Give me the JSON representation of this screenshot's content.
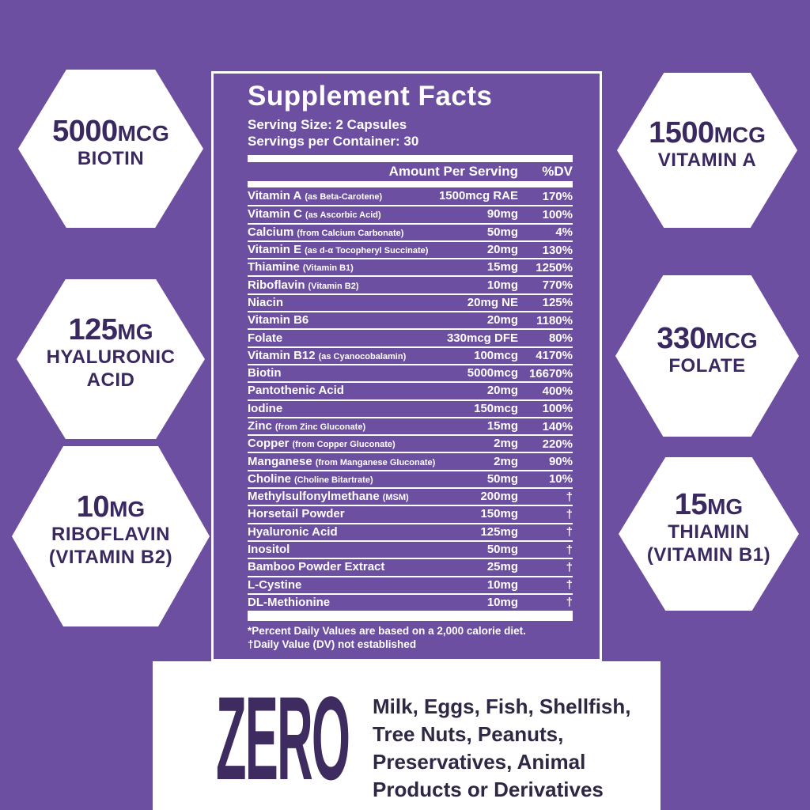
{
  "colors": {
    "background": "#6D4FA2",
    "panel_border": "#FFFFFF",
    "panel_text": "#FFFFFF",
    "dark_purple_text": "#3A2960",
    "hexagon_fill": "#FFFFFF",
    "zero_headline_color": "#3E2B5F",
    "allergen_text_color": "#2F2743"
  },
  "hexagons": {
    "left": [
      {
        "value": "5000",
        "unit": "MCG",
        "lines": [
          "BIOTIN"
        ]
      },
      {
        "value": "125",
        "unit": "MG",
        "lines": [
          "HYALURONIC",
          "ACID"
        ]
      },
      {
        "value": "10",
        "unit": "MG",
        "lines": [
          "RIBOFLAVIN",
          "(VITAMIN B2)"
        ]
      }
    ],
    "right": [
      {
        "value": "1500",
        "unit": "MCG",
        "lines": [
          "VITAMIN A"
        ]
      },
      {
        "value": "330",
        "unit": "MCG",
        "lines": [
          "FOLATE"
        ]
      },
      {
        "value": "15",
        "unit": "MG",
        "lines": [
          "THIAMIN",
          "(VITAMIN B1)"
        ]
      }
    ]
  },
  "supplement_panel": {
    "title": "Supplement Facts",
    "serving_size": "Serving Size: 2 Capsules",
    "servings_per_container": "Servings per Container: 30",
    "column_headers": {
      "amount": "Amount Per Serving",
      "dv": "%DV"
    },
    "rows": [
      {
        "name": "Vitamin A",
        "detail": "(as Beta-Carotene)",
        "amount": "1500mcg RAE",
        "dv": "170%"
      },
      {
        "name": "Vitamin C",
        "detail": "(as Ascorbic Acid)",
        "amount": "90mg",
        "dv": "100%"
      },
      {
        "name": "Calcium",
        "detail": "(from Calcium Carbonate)",
        "amount": "50mg",
        "dv": "4%"
      },
      {
        "name": "Vitamin E",
        "detail": "(as d-α Tocopheryl Succinate)",
        "amount": "20mg",
        "dv": "130%"
      },
      {
        "name": "Thiamine",
        "detail": "(Vitamin B1)",
        "amount": "15mg",
        "dv": "1250%"
      },
      {
        "name": "Riboflavin",
        "detail": "(Vitamin B2)",
        "amount": "10mg",
        "dv": "770%"
      },
      {
        "name": "Niacin",
        "detail": "",
        "amount": "20mg NE",
        "dv": "125%"
      },
      {
        "name": "Vitamin B6",
        "detail": "",
        "amount": "20mg",
        "dv": "1180%"
      },
      {
        "name": "Folate",
        "detail": "",
        "amount": "330mcg DFE",
        "dv": "80%"
      },
      {
        "name": "Vitamin B12",
        "detail": "(as Cyanocobalamin)",
        "amount": "100mcg",
        "dv": "4170%"
      },
      {
        "name": "Biotin",
        "detail": "",
        "amount": "5000mcg",
        "dv": "16670%"
      },
      {
        "name": "Pantothenic Acid",
        "detail": "",
        "amount": "20mg",
        "dv": "400%"
      },
      {
        "name": "Iodine",
        "detail": "",
        "amount": "150mcg",
        "dv": "100%"
      },
      {
        "name": "Zinc",
        "detail": "(from Zinc Gluconate)",
        "amount": "15mg",
        "dv": "140%"
      },
      {
        "name": "Copper",
        "detail": "(from Copper Gluconate)",
        "amount": "2mg",
        "dv": "220%"
      },
      {
        "name": "Manganese",
        "detail": "(from Manganese Gluconate)",
        "amount": "2mg",
        "dv": "90%"
      },
      {
        "name": "Choline",
        "detail": "(Choline Bitartrate)",
        "amount": "50mg",
        "dv": "10%"
      },
      {
        "name": "Methylsulfonylmethane",
        "detail": "(MSM)",
        "amount": "200mg",
        "dv": "†"
      },
      {
        "name": "Horsetail Powder",
        "detail": "",
        "amount": "150mg",
        "dv": "†"
      },
      {
        "name": "Hyaluronic Acid",
        "detail": "",
        "amount": "125mg",
        "dv": "†"
      },
      {
        "name": "Inositol",
        "detail": "",
        "amount": "50mg",
        "dv": "†"
      },
      {
        "name": "Bamboo Powder Extract",
        "detail": "",
        "amount": "25mg",
        "dv": "†"
      },
      {
        "name": "L-Cystine",
        "detail": "",
        "amount": "10mg",
        "dv": "†"
      },
      {
        "name": "DL-Methionine",
        "detail": "",
        "amount": "10mg",
        "dv": "†"
      }
    ],
    "footnotes": [
      "*Percent Daily Values are based on a 2,000 calorie diet.",
      "†Daily Value (DV) not established"
    ]
  },
  "zero_banner": {
    "headline": "ZERO",
    "lines": [
      "Milk, Eggs, Fish, Shellfish,",
      "Tree Nuts, Peanuts,",
      "Preservatives, Animal",
      "Products or Derivatives"
    ]
  }
}
